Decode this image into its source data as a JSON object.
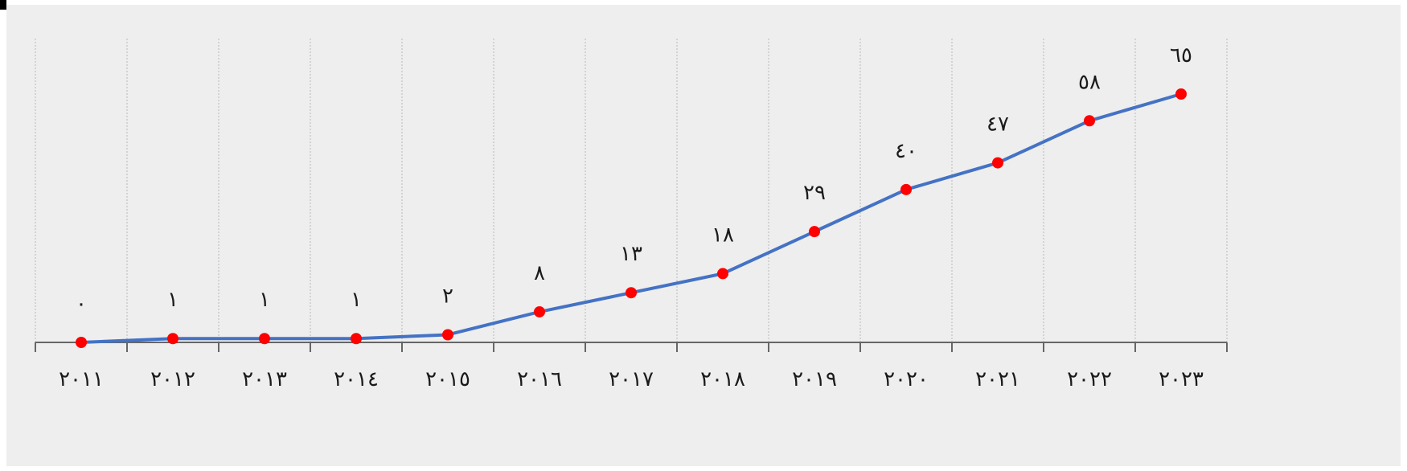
{
  "chart_data": {
    "type": "line",
    "title": "",
    "xlabel": "",
    "ylabel": "",
    "categories": [
      "٢٠١١",
      "٢٠١٢",
      "٢٠١٣",
      "٢٠١٤",
      "٢٠١٥",
      "٢٠١٦",
      "٢٠١٧",
      "٢٠١٨",
      "٢٠١٩",
      "٢٠٢٠",
      "٢٠٢١",
      "٢٠٢٢",
      "٢٠٢٣"
    ],
    "values": [
      0,
      1,
      1,
      1,
      2,
      8,
      13,
      18,
      29,
      40,
      47,
      58,
      65
    ],
    "data_labels": [
      "٠",
      "١",
      "١",
      "١",
      "٢",
      "٨",
      "١٣",
      "١٨",
      "٢٩",
      "٤٠",
      "٤٧",
      "٥٨",
      "٦٥"
    ],
    "ylim": [
      0,
      70
    ],
    "grid": "vertical-dashed",
    "legend": "none",
    "colors": {
      "line": "#4472C4",
      "marker": "#FF0000",
      "plot_background": "#EEEEEE",
      "gridline": "#B8B8B8",
      "axis": "#666666"
    }
  }
}
